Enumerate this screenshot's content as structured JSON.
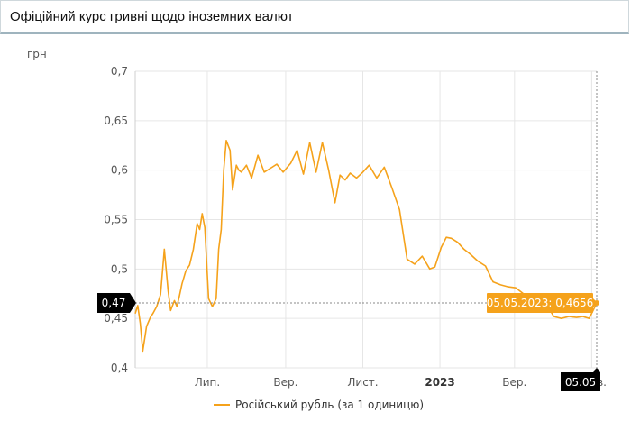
{
  "page": {
    "title": "Офіційний курс гривні щодо іноземних валют"
  },
  "colors": {
    "series": "#f5a21b",
    "tooltip_bg": "#f5a21b",
    "marker_bg": "#000000",
    "grid": "#e6e6e6"
  },
  "chart_data": {
    "type": "line",
    "title": "Офіційний курс гривні щодо іноземних валют",
    "ylabel": "грн",
    "xlabel": "",
    "ylim": [
      0.4,
      0.7
    ],
    "y_ticks": [
      "0,4",
      "0,45",
      "0,5",
      "0,55",
      "0,6",
      "0,65",
      "0,7"
    ],
    "y_tick_values": [
      0.4,
      0.45,
      0.5,
      0.55,
      0.6,
      0.65,
      0.7
    ],
    "x_ticks": [
      {
        "label": "Лип.",
        "x": "2022-07-01",
        "bold": false
      },
      {
        "label": "Вер.",
        "x": "2022-09-01",
        "bold": false
      },
      {
        "label": "Лист.",
        "x": "2022-11-01",
        "bold": false
      },
      {
        "label": "2023",
        "x": "2023-01-01",
        "bold": true
      },
      {
        "label": "Бер.",
        "x": "2023-03-01",
        "bold": false
      },
      {
        "label": "Трав.",
        "x": "2023-05-01",
        "bold": false
      }
    ],
    "xlim": [
      "2022-05-05",
      "2023-05-05"
    ],
    "grid": true,
    "legend": "bottom-center",
    "series": [
      {
        "name": "Російський рубль (за 1 одиницю)",
        "x": [
          "2022-05-05",
          "2022-05-07",
          "2022-05-09",
          "2022-05-11",
          "2022-05-14",
          "2022-05-17",
          "2022-05-19",
          "2022-05-22",
          "2022-05-25",
          "2022-05-28",
          "2022-05-31",
          "2022-06-02",
          "2022-06-05",
          "2022-06-07",
          "2022-06-09",
          "2022-06-11",
          "2022-06-14",
          "2022-06-17",
          "2022-06-20",
          "2022-06-23",
          "2022-06-25",
          "2022-06-27",
          "2022-06-29",
          "2022-07-02",
          "2022-07-05",
          "2022-07-08",
          "2022-07-10",
          "2022-07-12",
          "2022-07-14",
          "2022-07-16",
          "2022-07-19",
          "2022-07-21",
          "2022-07-24",
          "2022-07-26",
          "2022-07-28",
          "2022-08-01",
          "2022-08-05",
          "2022-08-10",
          "2022-08-15",
          "2022-08-20",
          "2022-08-25",
          "2022-08-30",
          "2022-09-05",
          "2022-09-10",
          "2022-09-15",
          "2022-09-20",
          "2022-09-25",
          "2022-09-30",
          "2022-10-05",
          "2022-10-10",
          "2022-10-14",
          "2022-10-18",
          "2022-10-22",
          "2022-10-27",
          "2022-11-01",
          "2022-11-06",
          "2022-11-12",
          "2022-11-18",
          "2022-11-24",
          "2022-11-30",
          "2022-12-06",
          "2022-12-12",
          "2022-12-18",
          "2022-12-24",
          "2022-12-28",
          "2023-01-02",
          "2023-01-06",
          "2023-01-10",
          "2023-01-15",
          "2023-01-20",
          "2023-01-25",
          "2023-01-31",
          "2023-02-06",
          "2023-02-12",
          "2023-02-18",
          "2023-02-24",
          "2023-03-02",
          "2023-03-08",
          "2023-03-14",
          "2023-03-20",
          "2023-03-26",
          "2023-04-01",
          "2023-04-07",
          "2023-04-13",
          "2023-04-19",
          "2023-04-24",
          "2023-04-29",
          "2023-05-05"
        ],
        "values": [
          0.455,
          0.463,
          0.445,
          0.417,
          0.442,
          0.451,
          0.455,
          0.462,
          0.474,
          0.52,
          0.478,
          0.458,
          0.468,
          0.462,
          0.473,
          0.485,
          0.498,
          0.504,
          0.52,
          0.546,
          0.54,
          0.556,
          0.542,
          0.47,
          0.462,
          0.47,
          0.52,
          0.54,
          0.6,
          0.63,
          0.62,
          0.58,
          0.605,
          0.6,
          0.598,
          0.605,
          0.592,
          0.615,
          0.598,
          0.602,
          0.606,
          0.598,
          0.607,
          0.62,
          0.596,
          0.628,
          0.598,
          0.628,
          0.6,
          0.567,
          0.595,
          0.59,
          0.597,
          0.592,
          0.598,
          0.605,
          0.592,
          0.603,
          0.582,
          0.56,
          0.51,
          0.505,
          0.513,
          0.5,
          0.502,
          0.522,
          0.532,
          0.531,
          0.527,
          0.52,
          0.515,
          0.508,
          0.503,
          0.487,
          0.484,
          0.482,
          0.481,
          0.475,
          0.472,
          0.47,
          0.465,
          0.452,
          0.45,
          0.452,
          0.451,
          0.452,
          0.45,
          0.4656
        ]
      }
    ],
    "annotations": {
      "tooltip": "05.05.2023: 0,4656",
      "y_marker": "0,47",
      "x_marker": "05.05"
    }
  }
}
